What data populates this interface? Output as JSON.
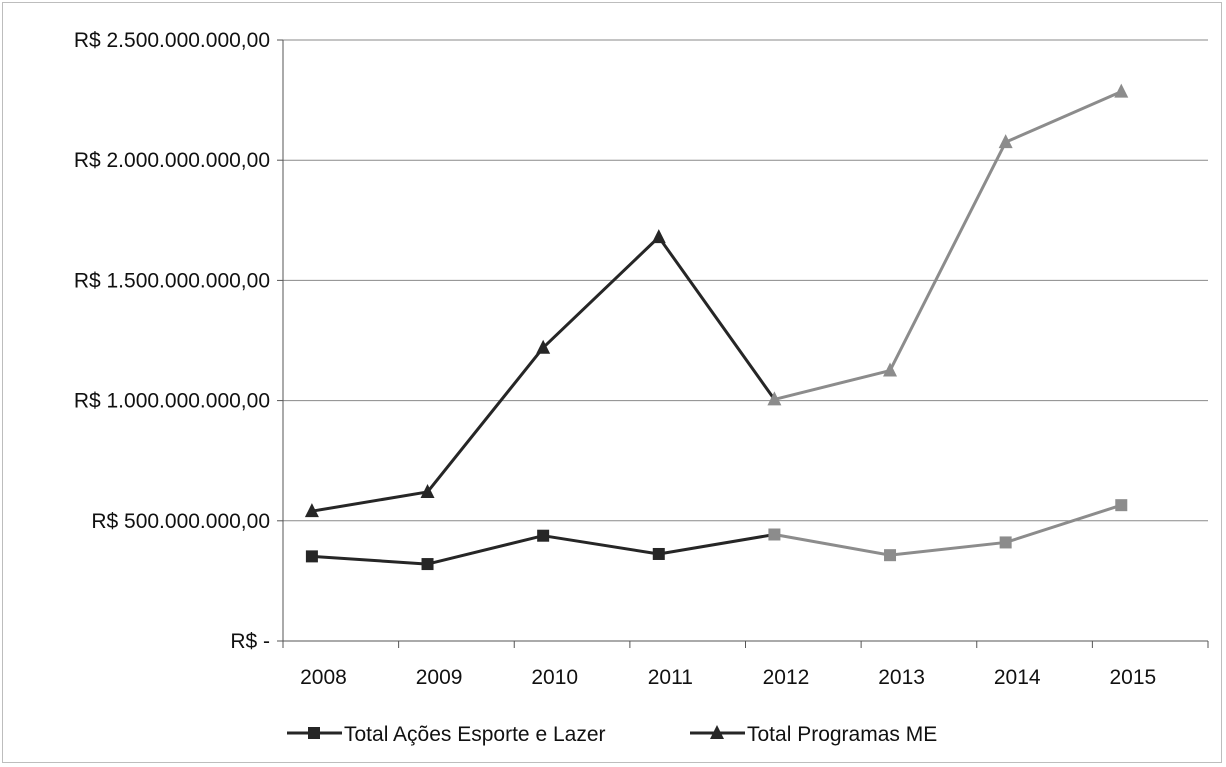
{
  "chart_data": {
    "type": "line",
    "title": "",
    "xlabel": "",
    "ylabel": "",
    "categories": [
      "2008",
      "2009",
      "2010",
      "2011",
      "2012",
      "2013",
      "2014",
      "2015"
    ],
    "ylim": [
      0,
      2500000000
    ],
    "yticks": [
      {
        "value": 0,
        "label": "R$ -"
      },
      {
        "value": 500000000,
        "label": "R$ 500.000.000,00"
      },
      {
        "value": 1000000000,
        "label": "R$ 1.000.000.000,00"
      },
      {
        "value": 1500000000,
        "label": "R$ 1.500.000.000,00"
      },
      {
        "value": 2000000000,
        "label": "R$ 2.000.000.000,00"
      },
      {
        "value": 2500000000,
        "label": "R$ 2.500.000.000,00"
      }
    ],
    "grid": true,
    "legend_position": "bottom",
    "series": [
      {
        "name": "Total Ações Esporte e Lazer",
        "marker": "square",
        "values": [
          352000000,
          320000000,
          438000000,
          362000000,
          443000000,
          357000000,
          410000000,
          565000000
        ]
      },
      {
        "name": "Total Programas ME",
        "marker": "triangle",
        "values": [
          540000000,
          620000000,
          1220000000,
          1680000000,
          1005000000,
          1125000000,
          2075000000,
          2285000000
        ]
      }
    ],
    "segment_colors": {
      "first": "#262626",
      "second": "#8c8c8c"
    },
    "color_change_after_index": 4
  }
}
